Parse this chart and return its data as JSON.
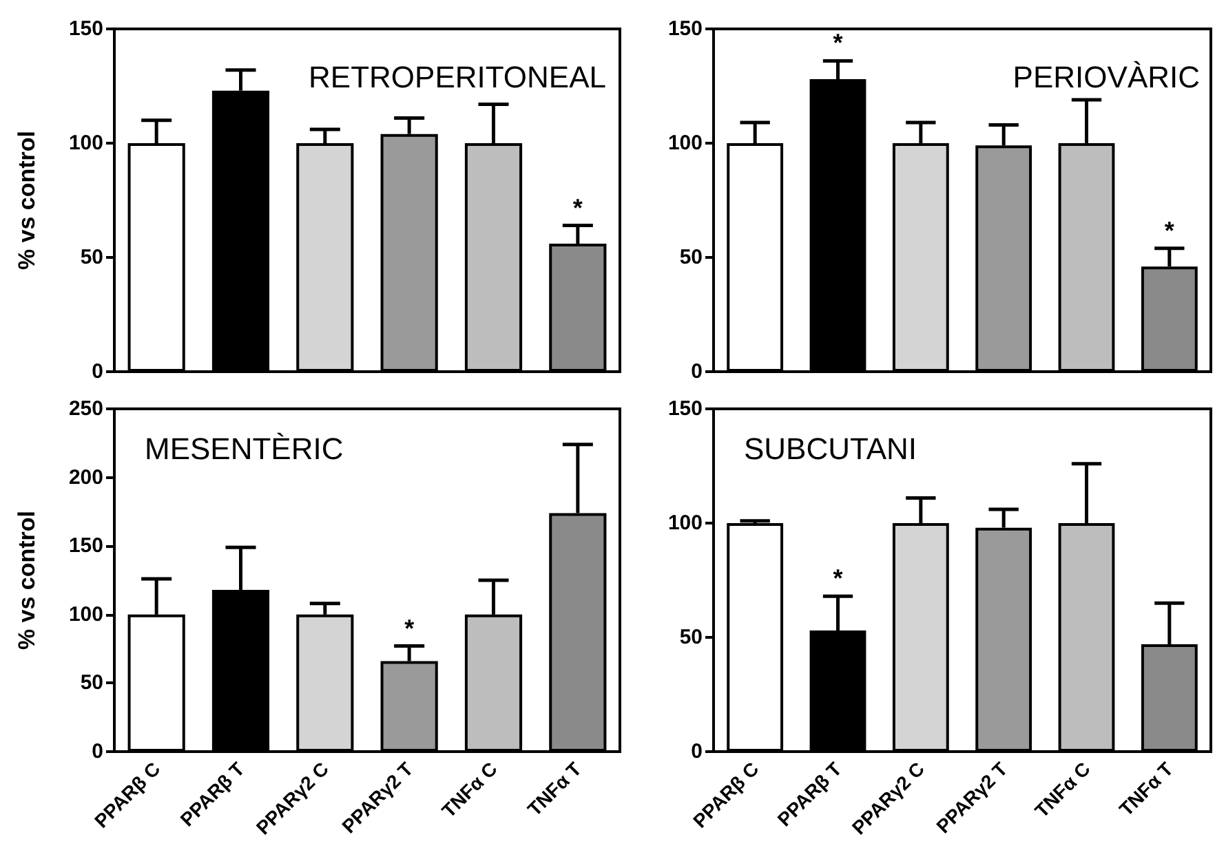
{
  "chart_data": [
    {
      "type": "bar",
      "title": "RETROPERITONEAL",
      "ylabel": "% vs control",
      "categories": [
        "PPARβ C",
        "PPARβ T",
        "PPARγ2 C",
        "PPARγ2 T",
        "TNFα C",
        "TNFα T"
      ],
      "values": [
        100,
        123,
        100,
        104,
        100,
        56
      ],
      "errors": [
        [
          100,
          110
        ],
        [
          123,
          132
        ],
        [
          100,
          106
        ],
        [
          104,
          111
        ],
        [
          100,
          117
        ],
        [
          56,
          64
        ]
      ],
      "colors": [
        "#ffffff",
        "#000000",
        "#d4d4d4",
        "#9a9a9a",
        "#bdbdbd",
        "#8a8a8a"
      ],
      "ylim": [
        0,
        150
      ],
      "yticks": [
        0,
        50,
        100,
        150
      ],
      "tick_labels": "y",
      "annotations": [
        {
          "text": "*",
          "x": "TNFα T",
          "y": 56
        }
      ]
    },
    {
      "type": "bar",
      "title": "PERIOVÀRIC",
      "categories": [
        "PPARβ C",
        "PPARβ T",
        "PPARγ2 C",
        "PPARγ2 T",
        "TNFα C",
        "TNFα T"
      ],
      "values": [
        100,
        128,
        100,
        99,
        100,
        46
      ],
      "errors": [
        [
          100,
          109
        ],
        [
          128,
          136
        ],
        [
          100,
          109
        ],
        [
          99,
          108
        ],
        [
          100,
          119
        ],
        [
          46,
          54
        ]
      ],
      "colors": [
        "#ffffff",
        "#000000",
        "#d4d4d4",
        "#9a9a9a",
        "#bdbdbd",
        "#8a8a8a"
      ],
      "ylim": [
        0,
        150
      ],
      "yticks": [
        0,
        50,
        100,
        150
      ],
      "tick_labels": "y",
      "annotations": [
        {
          "text": "*",
          "x": "PPARβ T",
          "y": 128
        },
        {
          "text": "*",
          "x": "TNFα T",
          "y": 46
        }
      ]
    },
    {
      "type": "bar",
      "title": "MESENTÈRIC",
      "ylabel": "% vs control",
      "categories": [
        "PPARβ C",
        "PPARβ T",
        "PPARγ2 C",
        "PPARγ2 T",
        "TNFα C",
        "TNFα T"
      ],
      "values": [
        100,
        118,
        100,
        66,
        100,
        174
      ],
      "errors": [
        [
          100,
          126
        ],
        [
          118,
          149
        ],
        [
          100,
          108
        ],
        [
          66,
          77
        ],
        [
          100,
          125
        ],
        [
          174,
          224
        ]
      ],
      "colors": [
        "#ffffff",
        "#000000",
        "#d4d4d4",
        "#9a9a9a",
        "#bdbdbd",
        "#8a8a8a"
      ],
      "ylim": [
        0,
        250
      ],
      "yticks": [
        0,
        50,
        100,
        150,
        200,
        250
      ],
      "annotations": [
        {
          "text": "*",
          "x": "PPARγ2 T",
          "y": 66
        }
      ]
    },
    {
      "type": "bar",
      "title": "SUBCUTANI",
      "categories": [
        "PPARβ C",
        "PPARβ T",
        "PPARγ2 C",
        "PPARγ2 T",
        "TNFα C",
        "TNFα T"
      ],
      "values": [
        100,
        53,
        100,
        98,
        100,
        47
      ],
      "errors": [
        [
          100,
          101
        ],
        [
          53,
          68
        ],
        [
          100,
          111
        ],
        [
          98,
          106
        ],
        [
          100,
          126
        ],
        [
          47,
          65
        ]
      ],
      "colors": [
        "#ffffff",
        "#000000",
        "#d4d4d4",
        "#9a9a9a",
        "#bdbdbd",
        "#8a8a8a"
      ],
      "ylim": [
        0,
        150
      ],
      "yticks": [
        0,
        50,
        100,
        150
      ],
      "annotations": [
        {
          "text": "*",
          "x": "PPARβ T",
          "y": 53
        }
      ]
    }
  ]
}
